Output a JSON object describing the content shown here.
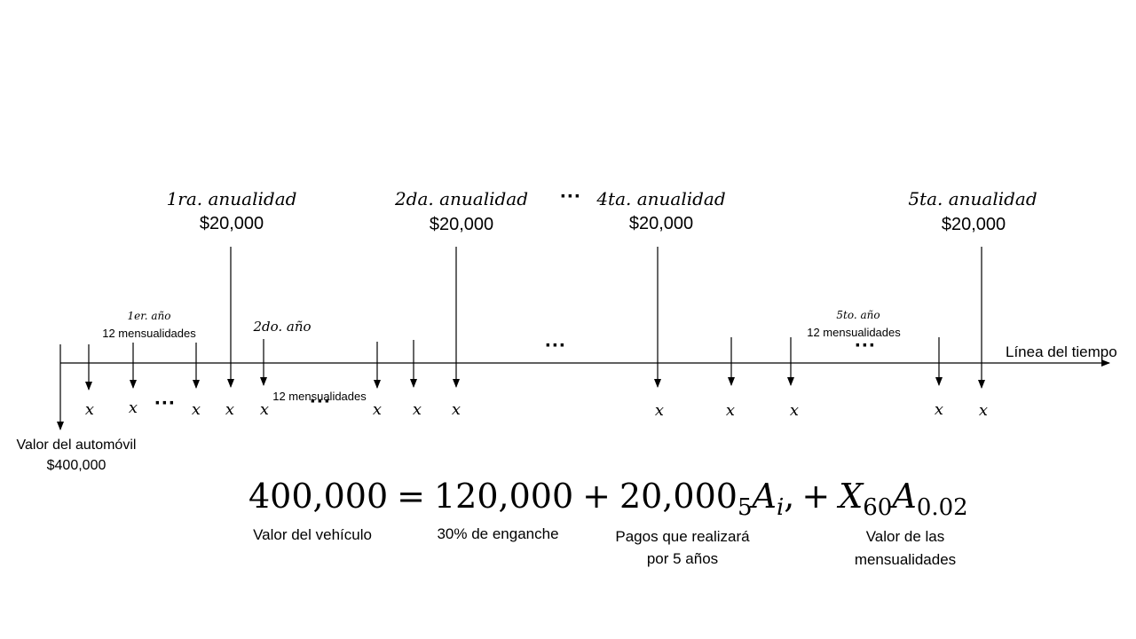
{
  "annuities": [
    {
      "label": "1ra. anualidad",
      "amount": "$20,000"
    },
    {
      "label": "2da. anualidad",
      "amount": "$20,000"
    },
    {
      "label": "4ta. anualidad",
      "amount": "$20,000"
    },
    {
      "label": "5ta. anualidad",
      "amount": "$20,000"
    }
  ],
  "years": [
    {
      "label": "1er. año",
      "note": "12 mensualidades"
    },
    {
      "label": "2do. año",
      "note": "12 mensualidades"
    },
    {
      "label": "5to. año",
      "note": "12 mensualidades"
    }
  ],
  "timeline_label": "Línea del tiempo",
  "car_value": {
    "label": "Valor del automóvil",
    "amount": "$400,000"
  },
  "payment_symbol": "x",
  "ellipsis": "···",
  "equation": {
    "parts": [
      "400,000",
      "=",
      "120,000",
      "+",
      "20,000",
      "5",
      "A",
      "i",
      ",",
      "+",
      "X",
      "60",
      "A",
      "0.02"
    ]
  },
  "captions": [
    [
      "Valor del vehículo"
    ],
    [
      "30% de enganche"
    ],
    [
      "Pagos que realizará",
      "por 5 años"
    ],
    [
      "Valor de las",
      "mensualidades"
    ]
  ]
}
